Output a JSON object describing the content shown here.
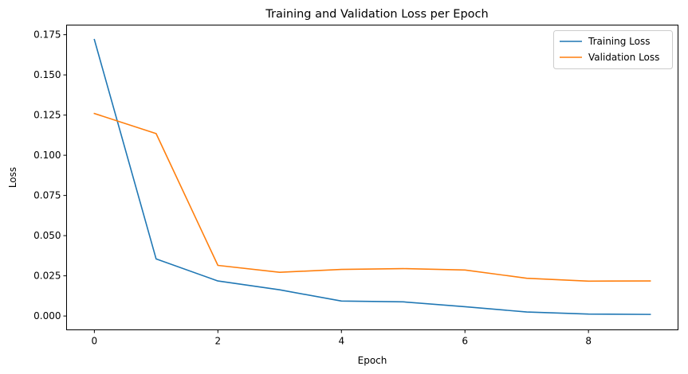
{
  "chart_data": {
    "type": "line",
    "title": "Training and Validation Loss per Epoch",
    "xlabel": "Epoch",
    "ylabel": "Loss",
    "x": [
      0,
      1,
      2,
      3,
      4,
      5,
      6,
      7,
      8,
      9
    ],
    "xlim": [
      -0.45,
      9.45
    ],
    "ylim": [
      -0.0086,
      0.181
    ],
    "xticks": [
      0,
      2,
      4,
      6,
      8
    ],
    "xtick_labels": [
      "0",
      "2",
      "4",
      "6",
      "8"
    ],
    "yticks": [
      0.0,
      0.025,
      0.05,
      0.075,
      0.1,
      0.125,
      0.15,
      0.175
    ],
    "ytick_labels": [
      "0.000",
      "0.025",
      "0.050",
      "0.075",
      "0.100",
      "0.125",
      "0.150",
      "0.175"
    ],
    "grid": false,
    "legend_position": "top-right",
    "series": [
      {
        "name": "Training Loss",
        "color": "#1f77b4",
        "values": [
          0.172,
          0.0355,
          0.0218,
          0.0163,
          0.0093,
          0.0088,
          0.0058,
          0.0025,
          0.0012,
          0.001
        ]
      },
      {
        "name": "Validation Loss",
        "color": "#ff7f0e",
        "values": [
          0.126,
          0.1135,
          0.0315,
          0.0272,
          0.029,
          0.0295,
          0.0286,
          0.0235,
          0.0217,
          0.0218
        ]
      }
    ]
  }
}
